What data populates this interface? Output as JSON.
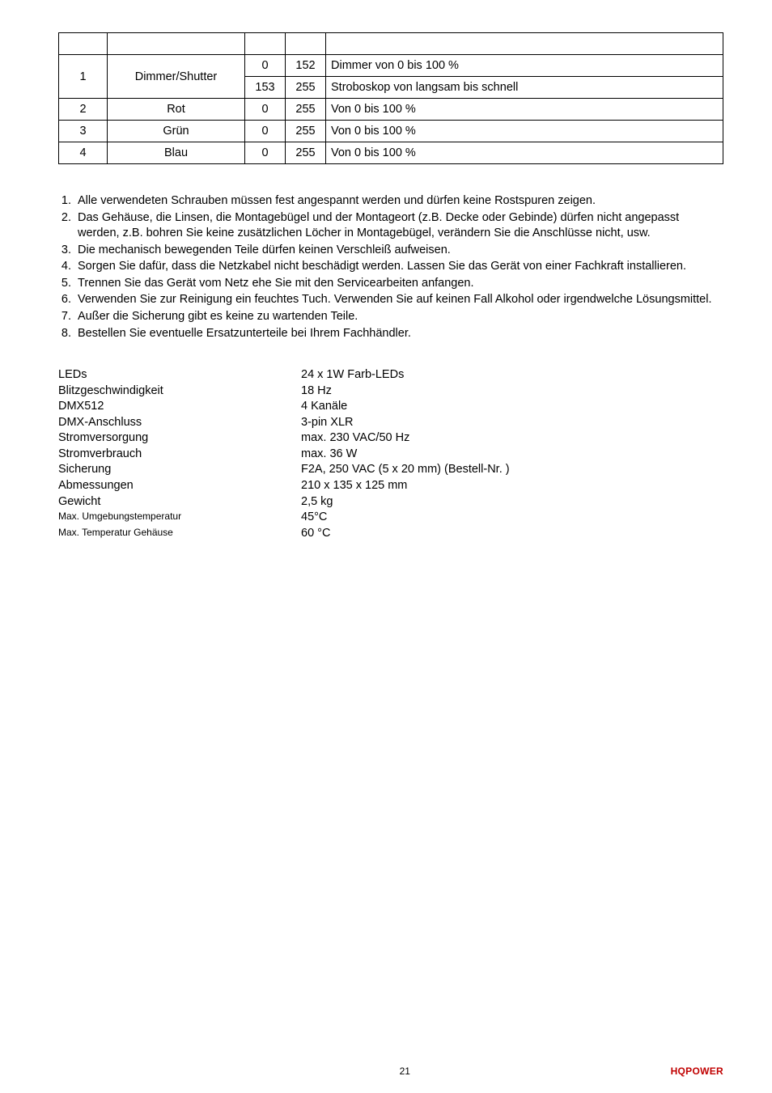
{
  "dmx_table": {
    "rows": [
      {
        "ch": "1",
        "ch_rowspan": 2,
        "fn": "Dimmer/Shutter",
        "fn_rowspan": 2,
        "from": "0",
        "to": "152",
        "desc": "Dimmer von 0 bis 100 %"
      },
      {
        "from": "153",
        "to": "255",
        "desc": "Stroboskop von langsam bis schnell"
      },
      {
        "ch": "2",
        "fn": "Rot",
        "from": "0",
        "to": "255",
        "desc": "Von 0 bis 100 %"
      },
      {
        "ch": "3",
        "fn": "Grün",
        "from": "0",
        "to": "255",
        "desc": "Von 0 bis 100 %"
      },
      {
        "ch": "4",
        "fn": "Blau",
        "from": "0",
        "to": "255",
        "desc": "Von 0 bis 100 %"
      }
    ],
    "col_widths": [
      "60px",
      "170px",
      "50px",
      "50px",
      "auto"
    ]
  },
  "maintenance": [
    "Alle verwendeten Schrauben müssen fest angespannt werden und dürfen keine Rostspuren zeigen.",
    "Das Gehäuse, die Linsen, die Montagebügel und der Montageort (z.B.  Decke oder Gebinde) dürfen nicht angepasst werden, z.B. bohren Sie keine zusätzlichen Löcher in Montagebügel, verändern Sie die Anschlüsse nicht, usw.",
    "Die mechanisch bewegenden Teile dürfen keinen Verschleiß aufweisen.",
    "Sorgen Sie dafür, dass die Netzkabel nicht beschädigt werden. Lassen Sie das Gerät von einer Fachkraft installieren.",
    "Trennen Sie das Gerät vom Netz ehe Sie mit den Servicearbeiten anfangen.",
    "Verwenden Sie zur Reinigung ein feuchtes Tuch. Verwenden Sie auf keinen Fall Alkohol oder irgendwelche Lösungsmittel.",
    "Außer die Sicherung gibt es keine zu wartenden Teile.",
    "Bestellen Sie eventuelle Ersatzunterteile bei Ihrem Fachhändler."
  ],
  "specs": [
    {
      "label": "LEDs",
      "value": "24 x 1W Farb-LEDs"
    },
    {
      "label": "Blitzgeschwindigkeit",
      "value": "18 Hz"
    },
    {
      "label": "DMX512",
      "value": "4 Kanäle"
    },
    {
      "label": "DMX-Anschluss",
      "value": "3-pin XLR"
    },
    {
      "label": "Stromversorgung",
      "value": "max. 230 VAC/50 Hz"
    },
    {
      "label": "Stromverbrauch",
      "value": "max. 36 W"
    },
    {
      "label": "Sicherung",
      "value": "F2A, 250 VAC (5 x 20 mm) (Bestell-Nr.          )"
    },
    {
      "label": "Abmessungen",
      "value": "210 x 135 x 125 mm"
    },
    {
      "label": "Gewicht",
      "value": "2,5 kg"
    },
    {
      "label": "Max. Umgebungstemperatur",
      "value": "45°C",
      "small_label": true
    },
    {
      "label": "Max. Temperatur Gehäuse",
      "value": "60 °C",
      "small_label": true
    }
  ],
  "footer": {
    "page": "21",
    "brand": "HQPOWER"
  }
}
